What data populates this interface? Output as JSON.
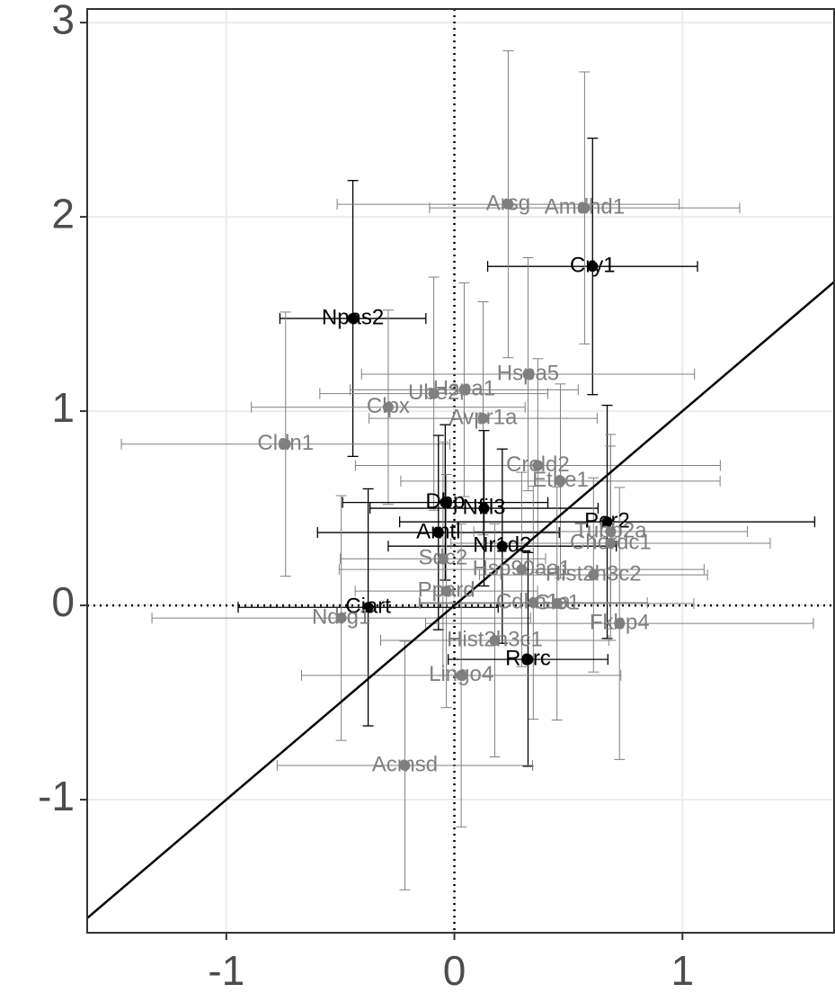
{
  "chart_data": {
    "type": "scatter",
    "xlim": [
      -1.61,
      1.665
    ],
    "ylim": [
      -1.685,
      3.07
    ],
    "xticks": [
      -1,
      0,
      1
    ],
    "yticks": [
      -1,
      0,
      1,
      2,
      3
    ],
    "grid": true,
    "identity_line": true,
    "zero_lines": true,
    "points": [
      {
        "label": "Npas2",
        "x": -0.445,
        "y": 1.477,
        "xerr": 0.32,
        "yerr": 0.71,
        "color": "#000000"
      },
      {
        "label": "Cry1",
        "x": 0.606,
        "y": 1.745,
        "xerr": 0.46,
        "yerr": 0.66,
        "color": "#000000"
      },
      {
        "label": "Arsg",
        "x": 0.236,
        "y": 2.065,
        "xerr": 0.75,
        "yerr": 0.79,
        "color": "#7f7f7f"
      },
      {
        "label": "Amdhd1",
        "x": 0.571,
        "y": 2.046,
        "xerr": 0.68,
        "yerr": 0.7,
        "color": "#7f7f7f"
      },
      {
        "label": "Hspa5",
        "x": 0.323,
        "y": 1.19,
        "xerr": 0.73,
        "yerr": 0.6,
        "color": "#7f7f7f"
      },
      {
        "label": "Ube2",
        "x": -0.09,
        "y": 1.09,
        "xerr": 0.5,
        "yerr": 0.6,
        "color": "#7f7f7f"
      },
      {
        "label": "Hspa1",
        "x": 0.043,
        "y": 1.11,
        "xerr": 0.5,
        "yerr": 0.55,
        "color": "#7f7f7f"
      },
      {
        "label": "Clpx",
        "x": -0.29,
        "y": 1.02,
        "xerr": 0.6,
        "yerr": 0.5,
        "color": "#7f7f7f"
      },
      {
        "label": "Avpr1a",
        "x": 0.126,
        "y": 0.963,
        "xerr": 0.5,
        "yerr": 0.6,
        "color": "#7f7f7f"
      },
      {
        "label": "Cldn1",
        "x": -0.74,
        "y": 0.83,
        "xerr": 0.72,
        "yerr": 0.68,
        "color": "#7f7f7f"
      },
      {
        "label": "Creld2",
        "x": 0.366,
        "y": 0.72,
        "xerr": 0.8,
        "yerr": 0.55,
        "color": "#7f7f7f"
      },
      {
        "label": "Ethe1",
        "x": 0.465,
        "y": 0.64,
        "xerr": 0.7,
        "yerr": 0.5,
        "color": "#7f7f7f"
      },
      {
        "label": "Dbp",
        "x": -0.04,
        "y": 0.53,
        "xerr": 0.45,
        "yerr": 0.4,
        "color": "#000000"
      },
      {
        "label": "Nfil3",
        "x": 0.13,
        "y": 0.5,
        "xerr": 0.5,
        "yerr": 0.4,
        "color": "#000000"
      },
      {
        "label": "Per2",
        "x": 0.67,
        "y": 0.43,
        "xerr": 0.91,
        "yerr": 0.6,
        "color": "#000000"
      },
      {
        "label": "Arntl",
        "x": -0.07,
        "y": 0.375,
        "xerr": 0.53,
        "yerr": 0.5,
        "color": "#000000"
      },
      {
        "label": "Nr1d2",
        "x": 0.21,
        "y": 0.305,
        "xerr": 0.5,
        "yerr": 0.5,
        "color": "#000000"
      },
      {
        "label": "Tubb2a",
        "x": 0.685,
        "y": 0.38,
        "xerr": 0.6,
        "yerr": 0.5,
        "color": "#7f7f7f"
      },
      {
        "label": "Chordc1",
        "x": 0.685,
        "y": 0.32,
        "xerr": 0.7,
        "yerr": 0.5,
        "color": "#7f7f7f"
      },
      {
        "label": "Sdc2",
        "x": -0.05,
        "y": 0.24,
        "xerr": 0.45,
        "yerr": 0.6,
        "color": "#7f7f7f"
      },
      {
        "label": "Hsp90aa1",
        "x": 0.295,
        "y": 0.185,
        "xerr": 0.8,
        "yerr": 0.5,
        "color": "#7f7f7f"
      },
      {
        "label": "Hist2h3c2",
        "x": 0.61,
        "y": 0.157,
        "xerr": 0.5,
        "yerr": 0.5,
        "color": "#7f7f7f"
      },
      {
        "label": "Ppard",
        "x": -0.035,
        "y": 0.074,
        "xerr": 0.4,
        "yerr": 0.6,
        "color": "#7f7f7f"
      },
      {
        "label": "Ciart",
        "x": -0.378,
        "y": -0.01,
        "xerr": 0.57,
        "yerr": 0.61,
        "color": "#000000"
      },
      {
        "label": "Ndrg1",
        "x": -0.496,
        "y": -0.065,
        "xerr": 0.83,
        "yerr": 0.63,
        "color": "#7f7f7f"
      },
      {
        "label": "Cdkn1a",
        "x": 0.346,
        "y": 0.014,
        "xerr": 0.5,
        "yerr": 0.6,
        "color": "#7f7f7f"
      },
      {
        "label": "Glo1",
        "x": 0.45,
        "y": 0.01,
        "xerr": 0.6,
        "yerr": 0.6,
        "color": "#7f7f7f"
      },
      {
        "label": "Fkbp4",
        "x": 0.724,
        "y": -0.093,
        "xerr": 0.85,
        "yerr": 0.7,
        "color": "#7f7f7f"
      },
      {
        "label": "Hist2h3c1",
        "x": 0.177,
        "y": -0.18,
        "xerr": 0.5,
        "yerr": 0.6,
        "color": "#7f7f7f"
      },
      {
        "label": "Rorc",
        "x": 0.323,
        "y": -0.278,
        "xerr": 0.35,
        "yerr": 0.55,
        "color": "#000000"
      },
      {
        "label": "Lingo4",
        "x": 0.03,
        "y": -0.36,
        "xerr": 0.7,
        "yerr": 0.78,
        "color": "#7f7f7f"
      },
      {
        "label": "Acmsd",
        "x": -0.217,
        "y": -0.824,
        "xerr": 0.56,
        "yerr": 0.64,
        "color": "#7f7f7f"
      }
    ]
  }
}
